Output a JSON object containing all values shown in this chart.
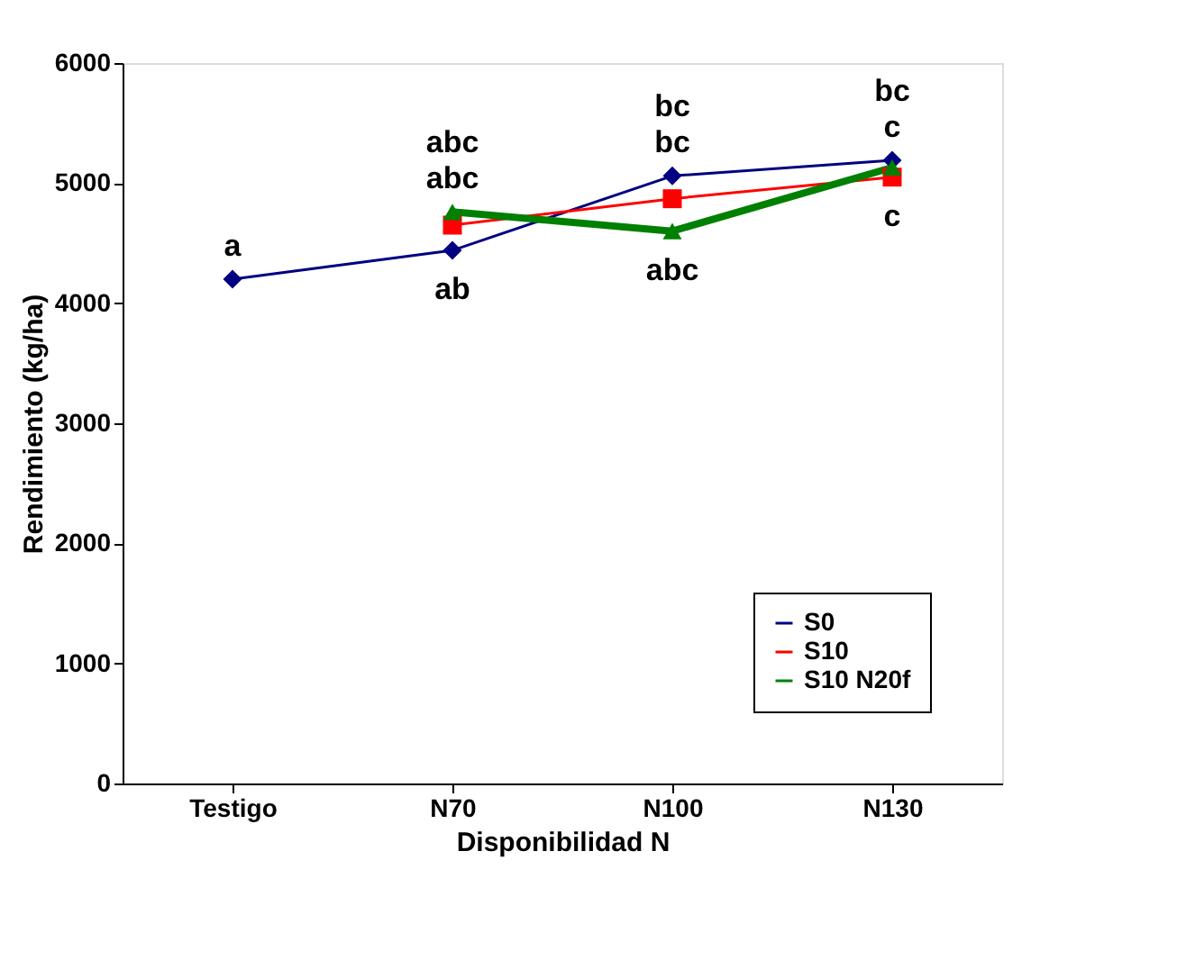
{
  "chart_data": {
    "type": "line",
    "xlabel": "Disponibilidad N",
    "ylabel": "Rendimiento (kg/ha)",
    "categories": [
      "Testigo",
      "N70",
      "N100",
      "N130"
    ],
    "series": [
      {
        "name": "S0",
        "color": "#000080",
        "marker": "diamond",
        "values": [
          4200,
          4440,
          5060,
          5190
        ]
      },
      {
        "name": "S10",
        "color": "#ff0000",
        "marker": "square",
        "values": [
          null,
          4650,
          4870,
          5050
        ]
      },
      {
        "name": "S10 N20f",
        "color": "#008000",
        "marker": "triangle",
        "values": [
          null,
          4760,
          4600,
          5130
        ]
      }
    ],
    "ylim": [
      0,
      6000
    ],
    "yticks": [
      0,
      1000,
      2000,
      3000,
      4000,
      5000,
      6000
    ],
    "grid": false,
    "legend": "bottom right",
    "annotations": [
      {
        "text": "a",
        "x": "Testigo",
        "y": 4200
      },
      {
        "text": "abc",
        "x": "N70",
        "y": 4650
      },
      {
        "text": "abc",
        "x": "N70",
        "y": 4760
      },
      {
        "text": "ab",
        "x": "N70",
        "y": 4440
      },
      {
        "text": "bc",
        "x": "N100",
        "y": 5060
      },
      {
        "text": "bc",
        "x": "N100",
        "y": 4870
      },
      {
        "text": "abc",
        "x": "N100",
        "y": 4600
      },
      {
        "text": "bc",
        "x": "N130",
        "y": 5190
      },
      {
        "text": "c",
        "x": "N130",
        "y": 5050
      },
      {
        "text": "c",
        "x": "N130",
        "y": 5130
      }
    ]
  }
}
